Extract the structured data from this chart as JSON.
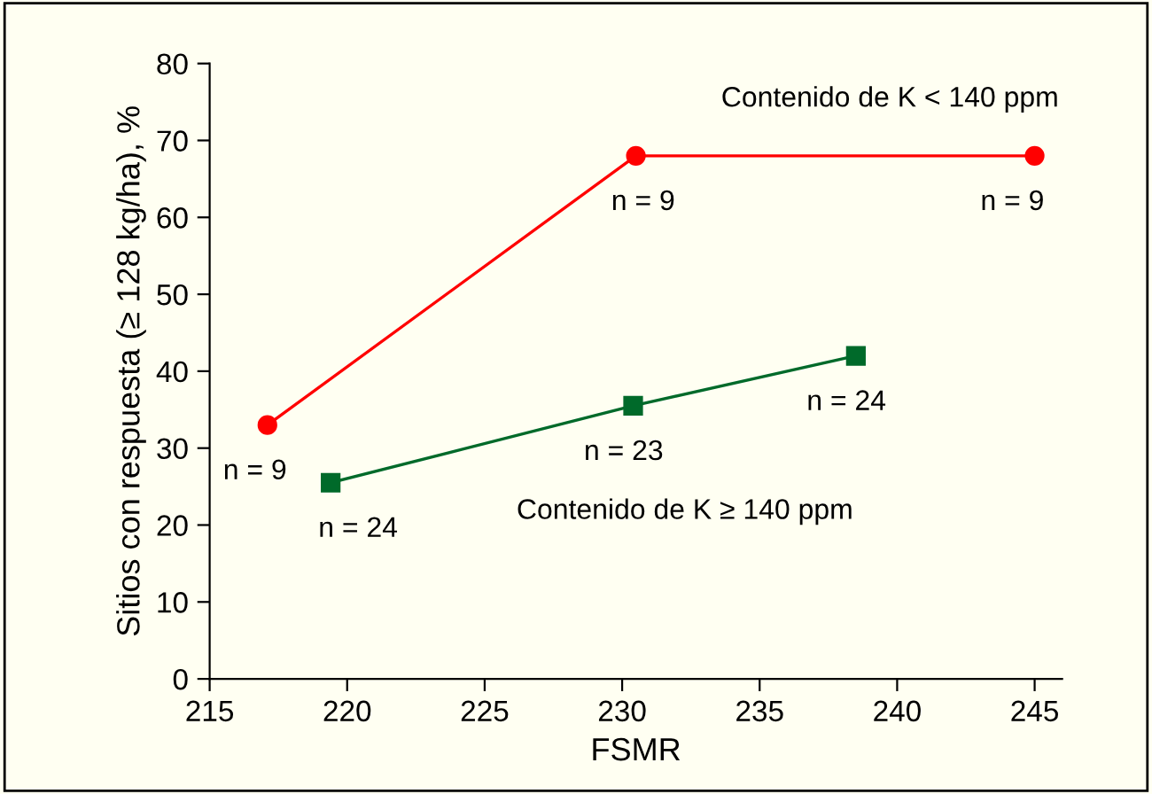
{
  "chart_data": {
    "type": "line",
    "xlabel": "FSMR",
    "ylabel": "Sitios con respuesta (≥ 128 kg/ha), %",
    "xlim": [
      215,
      246
    ],
    "xticks": [
      215,
      220,
      225,
      230,
      235,
      240,
      245
    ],
    "ylim": [
      0,
      80
    ],
    "yticks": [
      0,
      10,
      20,
      30,
      40,
      50,
      60,
      70,
      80
    ],
    "grid": false,
    "legend": false,
    "series": [
      {
        "name": "Contenido de K < 140 ppm",
        "color": "#ff0000",
        "marker": "circle",
        "x": [
          217.1,
          230.5,
          245
        ],
        "values": [
          33,
          68,
          68
        ]
      },
      {
        "name": "Contenido de K ≥ 140 ppm",
        "color": "#006a2a",
        "marker": "square",
        "x": [
          219.4,
          230.4,
          238.5
        ],
        "values": [
          25.5,
          35.5,
          42
        ]
      }
    ],
    "annotations": [
      {
        "text": "n = 9",
        "x": 217.1,
        "y": 33
      },
      {
        "text": "n = 9",
        "x": 230.5,
        "y": 68
      },
      {
        "text": "n = 9",
        "x": 245,
        "y": 68
      },
      {
        "text": "n = 24",
        "x": 219.4,
        "y": 25.5
      },
      {
        "text": "n = 23",
        "x": 230.4,
        "y": 35.5
      },
      {
        "text": "n = 24",
        "x": 238.5,
        "y": 42
      }
    ]
  }
}
